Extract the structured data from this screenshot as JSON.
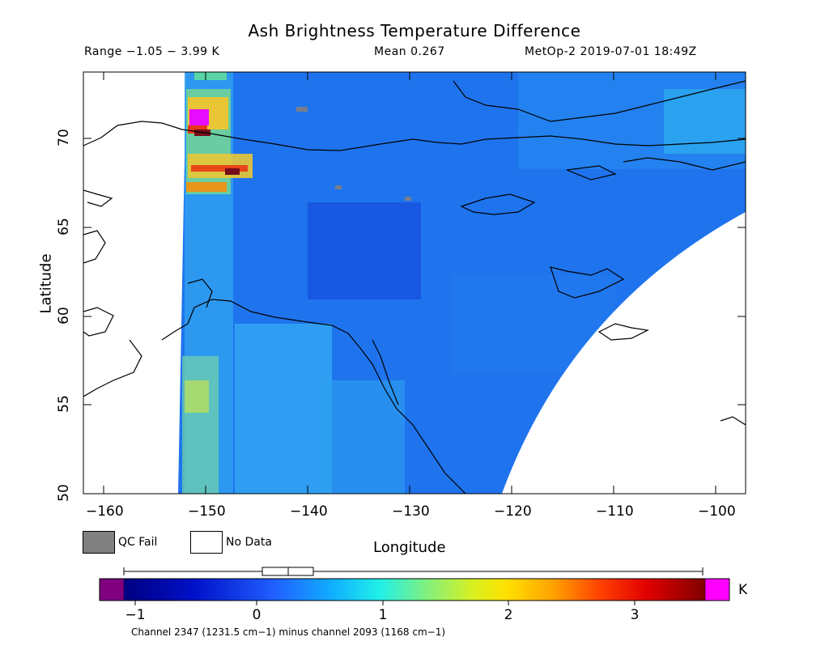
{
  "header": {
    "title": "Ash Brightness Temperature Difference",
    "range": "Range −1.05 − 3.99 K",
    "mean": "Mean 0.267",
    "sat": "MetOp-2 2019-07-01 18:49Z"
  },
  "axes": {
    "xlabel": "Longitude",
    "ylabel": "Latitude",
    "xticks": [
      "−160",
      "−150",
      "−140",
      "−130",
      "−120",
      "−110",
      "−100"
    ],
    "yticks": [
      "70",
      "65",
      "60",
      "55",
      "50"
    ],
    "x_range": [
      -162.5,
      -97.5
    ],
    "y_range": [
      50,
      73.8
    ]
  },
  "legend": {
    "qc_fail": "QC Fail",
    "no_data": "No Data",
    "qc_color": "#808080",
    "nodata_color": "#ffffff"
  },
  "colorbar": {
    "ticks": [
      "−1",
      "0",
      "1",
      "2",
      "3"
    ],
    "unit": "K",
    "range": [
      -1.3,
      3.7
    ],
    "underflow_color": "#800080",
    "overflow_color": "#ff00ff"
  },
  "footer": {
    "text": "Channel 2347 (1231.5 cm−1) minus channel 2093 (1168 cm−1)"
  }
}
